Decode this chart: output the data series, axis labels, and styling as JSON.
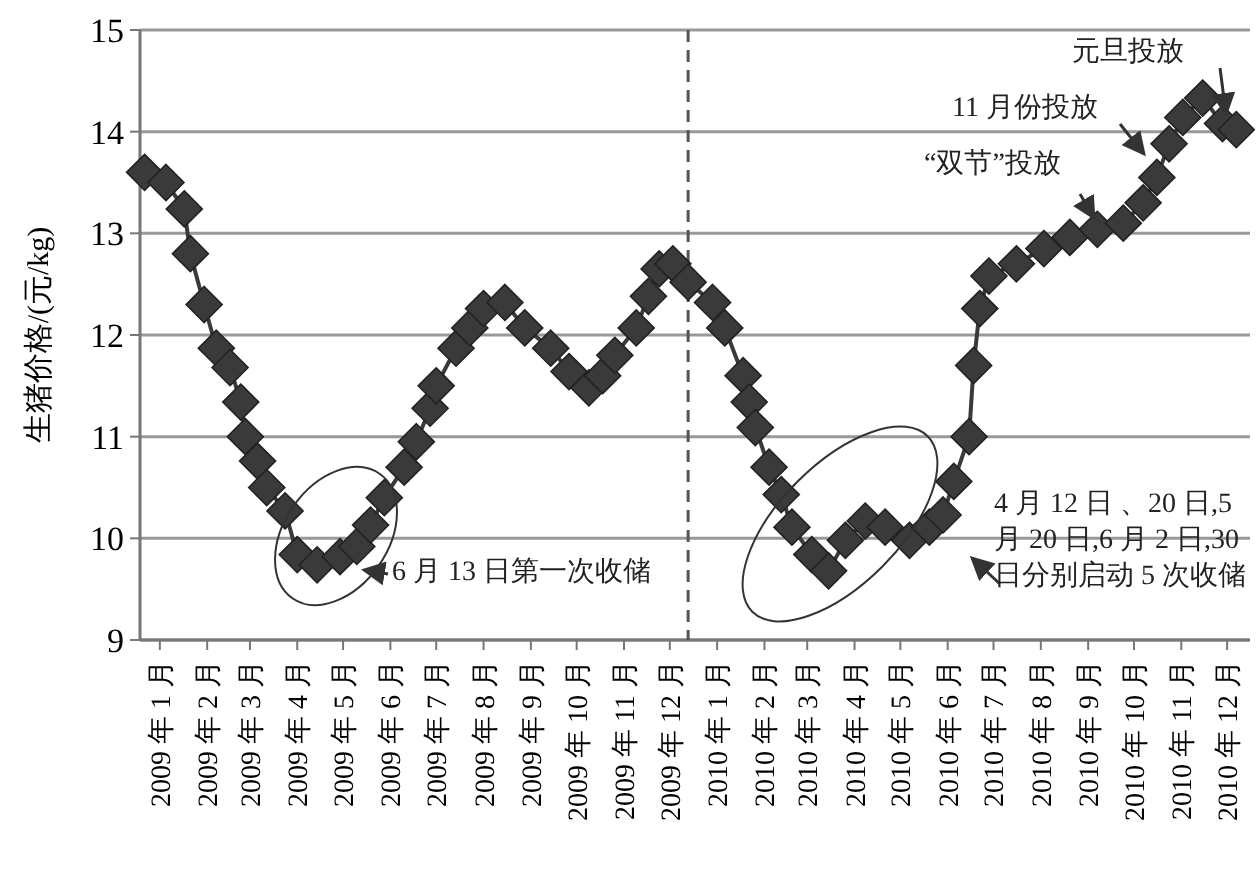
{
  "chart_data": {
    "type": "line",
    "ylabel": "生猪价格/(元/kg)",
    "marker": "diamond",
    "line_style": "solid",
    "grid": "y",
    "xlim": [
      "2008-12-19",
      "2010-12-16"
    ],
    "ylim": [
      9,
      15
    ],
    "yticks": [
      9,
      10,
      11,
      12,
      13,
      14,
      15
    ],
    "xticks": [
      {
        "value": "2009-01-01",
        "label": "2009 年 1 月"
      },
      {
        "value": "2009-02-01",
        "label": "2009 年 2 月"
      },
      {
        "value": "2009-03-01",
        "label": "2009 年 3 月"
      },
      {
        "value": "2009-04-01",
        "label": "2009 年 4 月"
      },
      {
        "value": "2009-05-01",
        "label": "2009 年 5 月"
      },
      {
        "value": "2009-06-01",
        "label": "2009 年 6 月"
      },
      {
        "value": "2009-07-01",
        "label": "2009 年 7 月"
      },
      {
        "value": "2009-08-01",
        "label": "2009 年 8 月"
      },
      {
        "value": "2009-09-01",
        "label": "2009 年 9 月"
      },
      {
        "value": "2009-10-01",
        "label": "2009 年 10 月"
      },
      {
        "value": "2009-11-01",
        "label": "2009 年 11 月"
      },
      {
        "value": "2009-12-01",
        "label": "2009 年 12 月"
      },
      {
        "value": "2010-01-01",
        "label": "2010 年 1 月"
      },
      {
        "value": "2010-02-01",
        "label": "2010 年 2 月"
      },
      {
        "value": "2010-03-01",
        "label": "2010 年 3 月"
      },
      {
        "value": "2010-04-01",
        "label": "2010 年 4 月"
      },
      {
        "value": "2010-05-01",
        "label": "2010 年 5 月"
      },
      {
        "value": "2010-06-01",
        "label": "2010 年 6 月"
      },
      {
        "value": "2010-07-01",
        "label": "2010 年 7 月"
      },
      {
        "value": "2010-08-01",
        "label": "2010 年 8 月"
      },
      {
        "value": "2010-09-01",
        "label": "2010 年 9 月"
      },
      {
        "value": "2010-10-01",
        "label": "2010 年 10 月"
      },
      {
        "value": "2010-11-01",
        "label": "2010 年 11 月"
      },
      {
        "value": "2010-12-01",
        "label": "2010 年 12 月"
      }
    ],
    "series": [
      {
        "color": "#3a3a3a",
        "x": [
          "2008-12-22",
          "2009-01-05",
          "2009-01-17",
          "2009-01-21",
          "2009-01-30",
          "2009-02-07",
          "2009-02-16",
          "2009-02-23",
          "2009-02-26",
          "2009-03-06",
          "2009-03-12",
          "2009-03-24",
          "2009-04-01",
          "2009-04-14",
          "2009-04-29",
          "2009-05-10",
          "2009-05-19",
          "2009-05-28",
          "2009-06-10",
          "2009-06-18",
          "2009-06-27",
          "2009-07-01",
          "2009-07-14",
          "2009-07-23",
          "2009-08-01",
          "2009-08-15",
          "2009-08-28",
          "2009-09-14",
          "2009-09-26",
          "2009-10-09",
          "2009-10-18",
          "2009-10-26",
          "2009-11-09",
          "2009-11-17",
          "2009-11-24",
          "2009-12-03",
          "2009-12-13",
          "2009-12-29",
          "2010-01-06",
          "2010-01-18",
          "2010-01-22",
          "2010-01-26",
          "2010-02-04",
          "2010-02-12",
          "2010-02-19",
          "2010-03-04",
          "2010-03-15",
          "2010-03-26",
          "2010-04-08",
          "2010-04-21",
          "2010-05-07",
          "2010-05-20",
          "2010-05-29",
          "2010-06-05",
          "2010-06-15",
          "2010-06-18",
          "2010-06-22",
          "2010-06-28",
          "2010-07-16",
          "2010-08-03",
          "2010-08-20",
          "2010-09-07",
          "2010-09-24",
          "2010-10-07",
          "2010-10-16",
          "2010-10-24",
          "2010-11-02",
          "2010-11-15",
          "2010-11-28",
          "2010-12-07"
        ],
        "values": [
          13.6,
          13.5,
          13.24,
          12.8,
          12.3,
          11.87,
          11.68,
          11.34,
          11.0,
          10.76,
          10.5,
          10.27,
          9.84,
          9.74,
          9.82,
          9.92,
          10.13,
          10.4,
          10.7,
          10.95,
          11.28,
          11.5,
          11.87,
          12.07,
          12.26,
          12.32,
          12.07,
          11.87,
          11.64,
          11.48,
          11.6,
          11.8,
          12.07,
          12.38,
          12.65,
          12.7,
          12.52,
          12.32,
          12.07,
          11.6,
          11.34,
          11.09,
          10.7,
          10.43,
          10.11,
          9.84,
          9.68,
          9.98,
          10.17,
          10.11,
          9.98,
          10.11,
          10.23,
          10.56,
          11.0,
          11.7,
          12.26,
          12.58,
          12.7,
          12.85,
          12.96,
          13.04,
          13.1,
          13.3,
          13.55,
          13.88,
          14.14,
          14.33,
          14.08,
          14.02
        ]
      }
    ],
    "ref_lines": [
      {
        "axis": "x",
        "value": "2009-12-13",
        "line_style": "dashed",
        "color": "#555555"
      }
    ],
    "annotations": [
      "6 月 13 日第一次收储",
      "4 月 12 日 、20 日,5 月 20 日,6 月 2 日,30 日分别启动 5 次收储",
      "“双节”投放",
      "11 月份投放",
      "元旦投放"
    ]
  }
}
